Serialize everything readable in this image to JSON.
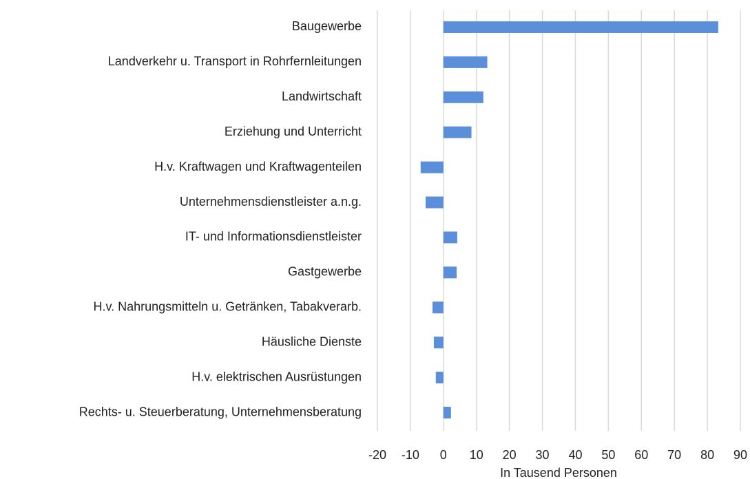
{
  "chart_data": {
    "type": "hbar",
    "x_label": "In Tausend Personen",
    "categories": [
      "Baugewerbe",
      "Landverkehr u. Transport in Rohrfernleitungen",
      "Landwirtschaft",
      "Erziehung und Unterricht",
      "H.v. Kraftwagen und Kraftwagenteilen",
      "Unternehmensdienstleister a.n.g.",
      "IT- und Informationsdienstleister",
      "Gastgewerbe",
      "H.v. Nahrungsmitteln u. Getränken, Tabakverarb.",
      "Häusliche Dienste",
      "H.v. elektrischen Ausrüstungen",
      "Rechts- u. Steuerberatung, Unternehmensberatung"
    ],
    "values": [
      83.3,
      13.3,
      12.1,
      8.5,
      -6.9,
      -5.4,
      4.2,
      4.0,
      -3.3,
      -2.9,
      -2.3,
      2.3
    ],
    "color": "#5b8fd9",
    "xlim": [
      -20,
      90
    ],
    "xticks": [
      -20,
      -10,
      0,
      10,
      20,
      30,
      40,
      50,
      60,
      70,
      80,
      90
    ],
    "grid": true
  }
}
